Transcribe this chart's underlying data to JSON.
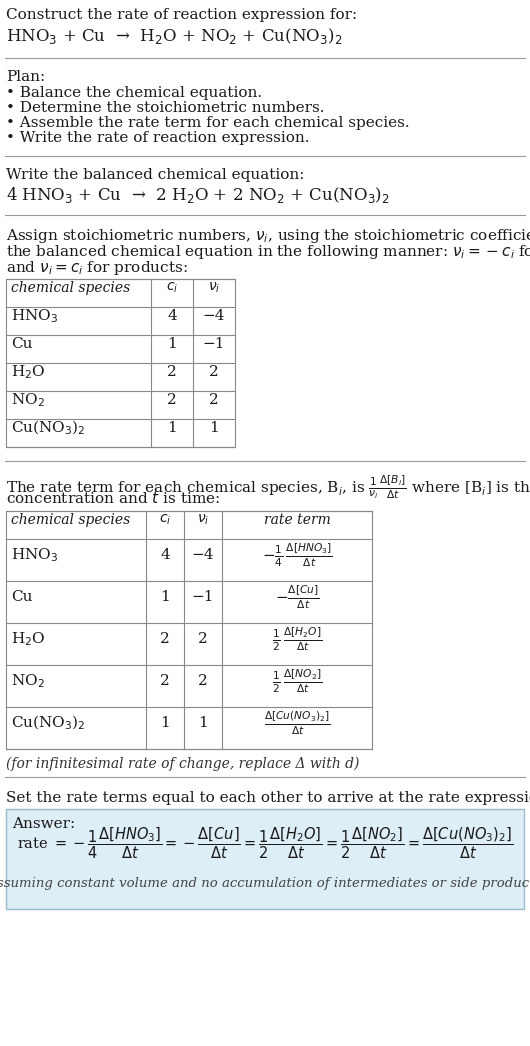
{
  "bg_color": "#ffffff",
  "title_line1": "Construct the rate of reaction expression for:",
  "reaction_unbalanced": "HNO$_3$ + Cu  →  H$_2$O + NO$_2$ + Cu(NO$_3$)$_2$",
  "plan_header": "Plan:",
  "plan_items": [
    "• Balance the chemical equation.",
    "• Determine the stoichiometric numbers.",
    "• Assemble the rate term for each chemical species.",
    "• Write the rate of reaction expression."
  ],
  "balanced_header": "Write the balanced chemical equation:",
  "balanced_equation": "4 HNO$_3$ + Cu  →  2 H$_2$O + 2 NO$_2$ + Cu(NO$_3$)$_2$",
  "stoich_intro_lines": [
    "Assign stoichiometric numbers, $\\nu_i$, using the stoichiometric coefficients, $c_i$, from",
    "the balanced chemical equation in the following manner: $\\nu_i = -c_i$ for reactants",
    "and $\\nu_i = c_i$ for products:"
  ],
  "table1_headers": [
    "chemical species",
    "$c_i$",
    "$\\nu_i$"
  ],
  "table1_rows": [
    [
      "HNO$_3$",
      "4",
      "−4"
    ],
    [
      "Cu",
      "1",
      "−1"
    ],
    [
      "H$_2$O",
      "2",
      "2"
    ],
    [
      "NO$_2$",
      "2",
      "2"
    ],
    [
      "Cu(NO$_3$)$_2$",
      "1",
      "1"
    ]
  ],
  "rate_term_intro_lines": [
    "The rate term for each chemical species, B$_i$, is $\\frac{1}{\\nu_i}\\frac{\\Delta[B_i]}{\\Delta t}$ where [B$_i$] is the amount",
    "concentration and $t$ is time:"
  ],
  "table2_headers": [
    "chemical species",
    "$c_i$",
    "$\\nu_i$",
    "rate term"
  ],
  "table2_rows": [
    [
      "HNO$_3$",
      "4",
      "−4",
      "$-\\frac{1}{4}\\,\\frac{\\Delta[HNO_3]}{\\Delta t}$"
    ],
    [
      "Cu",
      "1",
      "−1",
      "$-\\frac{\\Delta[Cu]}{\\Delta t}$"
    ],
    [
      "H$_2$O",
      "2",
      "2",
      "$\\frac{1}{2}\\,\\frac{\\Delta[H_2O]}{\\Delta t}$"
    ],
    [
      "NO$_2$",
      "2",
      "2",
      "$\\frac{1}{2}\\,\\frac{\\Delta[NO_2]}{\\Delta t}$"
    ],
    [
      "Cu(NO$_3$)$_2$",
      "1",
      "1",
      "$\\frac{\\Delta[Cu(NO_3)_2]}{\\Delta t}$"
    ]
  ],
  "infinitesimal_note": "(for infinitesimal rate of change, replace Δ with d)",
  "set_equal_text": "Set the rate terms equal to each other to arrive at the rate expression:",
  "answer_box_color": "#deeef6",
  "answer_label": "Answer:",
  "answer_eq": "rate $= -\\dfrac{1}{4}\\dfrac{\\Delta[HNO_3]}{\\Delta t} = -\\dfrac{\\Delta[Cu]}{\\Delta t} = \\dfrac{1}{2}\\dfrac{\\Delta[H_2O]}{\\Delta t} = \\dfrac{1}{2}\\dfrac{\\Delta[NO_2]}{\\Delta t} = \\dfrac{\\Delta[Cu(NO_3)_2]}{\\Delta t}$",
  "answer_note": "(assuming constant volume and no accumulation of intermediates or side products)",
  "fs": 11,
  "fs_small": 10,
  "fs_large": 12
}
